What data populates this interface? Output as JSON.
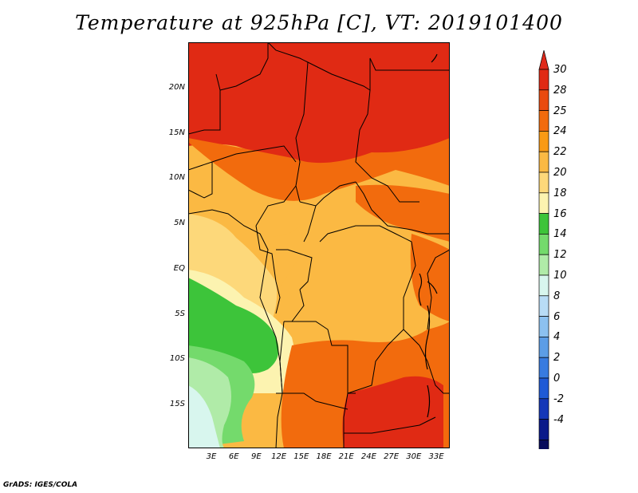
{
  "title": "Temperature at 925hPa [C], VT: 2019101400",
  "footer": "GrADS: IGES/COLA",
  "lat_labels": [
    "20N",
    "15N",
    "10N",
    "5N",
    "EQ",
    "5S",
    "10S",
    "15S"
  ],
  "lon_labels": [
    "3E",
    "6E",
    "9E",
    "12E",
    "15E",
    "18E",
    "21E",
    "24E",
    "27E",
    "30E",
    "33E"
  ],
  "colorbar": {
    "labels": [
      "30",
      "28",
      "25",
      "24",
      "22",
      "20",
      "18",
      "16",
      "14",
      "12",
      "10",
      "8",
      "6",
      "4",
      "2",
      "0",
      "-2",
      "-4"
    ],
    "colors": [
      "#e02a14",
      "#ea4a0e",
      "#f26b0d",
      "#f99a14",
      "#fbb943",
      "#fdd87a",
      "#fcf3b0",
      "#3dc43a",
      "#74da6c",
      "#b0eba8",
      "#d8f6ee",
      "#b8dcf6",
      "#8cc1f0",
      "#5c9de6",
      "#387be0",
      "#1f5ad6",
      "#1437b8",
      "#0a1a8a",
      "#060a5c"
    ],
    "top_color": "#e0291a",
    "bottom_color": "#d8d8f0"
  }
}
